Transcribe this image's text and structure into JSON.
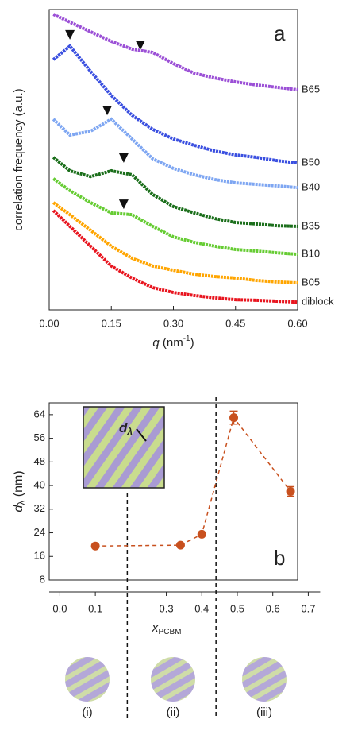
{
  "chart_data": [
    {
      "type": "line",
      "ylabel": "correlation frequency (a.u.)",
      "xlabel": {
        "symbol": "q",
        "unit": " (nm",
        "exponent": "-1",
        "close": ")"
      },
      "panel_label": "a",
      "x": [
        0.01,
        0.05,
        0.1,
        0.15,
        0.2,
        0.25,
        0.3,
        0.35,
        0.4,
        0.45,
        0.5,
        0.55,
        0.6
      ],
      "xlim": [
        0,
        0.6
      ],
      "xticks": [
        {
          "value": 0,
          "label": "0.00"
        },
        0.15,
        {
          "value": 0.3,
          "label": "0.30"
        },
        0.45,
        {
          "value": 0.6,
          "label": "0.60"
        }
      ],
      "ylim": [
        0,
        100
      ],
      "series": [
        {
          "name": "B65",
          "color": "#9b4fd6",
          "values": [
            98.4,
            95.8,
            92.6,
            89.4,
            86.8,
            85.7,
            82.0,
            78.8,
            77.2,
            75.9,
            74.9,
            74.1,
            73.3
          ]
        },
        {
          "name": "B50",
          "color": "#3a4fe0",
          "values": [
            83.3,
            87.8,
            79.4,
            71.4,
            64.8,
            60.1,
            56.9,
            54.8,
            52.9,
            51.6,
            50.8,
            49.7,
            48.9
          ]
        },
        {
          "name": "B40",
          "color": "#7ea6f2",
          "values": [
            63.5,
            58.2,
            59.5,
            63.5,
            56.9,
            50.3,
            47.1,
            45.0,
            43.4,
            42.3,
            41.8,
            41.3,
            40.7
          ]
        },
        {
          "name": "B35",
          "color": "#1a6e1a",
          "values": [
            50.8,
            46.3,
            44.4,
            46.3,
            45.0,
            38.4,
            34.4,
            32.3,
            30.4,
            29.1,
            28.6,
            28.0,
            27.8
          ]
        },
        {
          "name": "B10",
          "color": "#66cc33",
          "values": [
            43.7,
            39.7,
            35.7,
            32.3,
            31.7,
            27.8,
            24.3,
            22.5,
            21.2,
            20.1,
            19.6,
            19.0,
            18.5
          ]
        },
        {
          "name": "B05",
          "color": "#ffa500",
          "values": [
            35.7,
            31.7,
            26.5,
            21.2,
            17.2,
            14.6,
            13.2,
            11.9,
            11.1,
            10.6,
            9.8,
            9.3,
            9.0
          ]
        },
        {
          "name": "diblock",
          "color": "#e8141e",
          "values": [
            33.1,
            27.8,
            21.2,
            14.6,
            10.6,
            7.4,
            5.8,
            4.8,
            4.0,
            3.4,
            3.2,
            2.9,
            2.6
          ]
        }
      ],
      "peak_markers": [
        {
          "x": 0.05,
          "y": 91.3
        },
        {
          "x": 0.22,
          "y": 87.8
        },
        {
          "x": 0.14,
          "y": 66.1
        },
        {
          "x": 0.18,
          "y": 50.3
        },
        {
          "x": 0.18,
          "y": 34.9
        }
      ]
    },
    {
      "type": "scatter",
      "ylabel": {
        "text": "d",
        "sub": "λ",
        "rest": " (nm)"
      },
      "xlabel": {
        "text": "x",
        "sub": "PCBM"
      },
      "panel_label": "b",
      "inset_label": {
        "text": "d",
        "sub": "λ"
      },
      "x": [
        0.1,
        0.34,
        0.4,
        0.49,
        0.65
      ],
      "xlim": [
        -0.03,
        0.67
      ],
      "xticks": [
        {
          "value": 0,
          "label": "0.0"
        },
        0.1,
        0.3,
        0.4,
        0.5,
        0.6,
        0.7
      ],
      "ylim": [
        8,
        68
      ],
      "yticks": [
        8,
        16,
        24,
        32,
        40,
        48,
        56,
        64
      ],
      "series": [
        {
          "color": "#c8501e",
          "values": [
            19.5,
            19.8,
            23.5,
            63,
            38
          ],
          "errors": [
            null,
            null,
            null,
            2.2,
            1.6
          ]
        }
      ],
      "phase_boundaries": [
        0.19,
        0.44
      ],
      "morphology_labels": [
        "(i)",
        "(ii)",
        "(iii)"
      ]
    }
  ]
}
